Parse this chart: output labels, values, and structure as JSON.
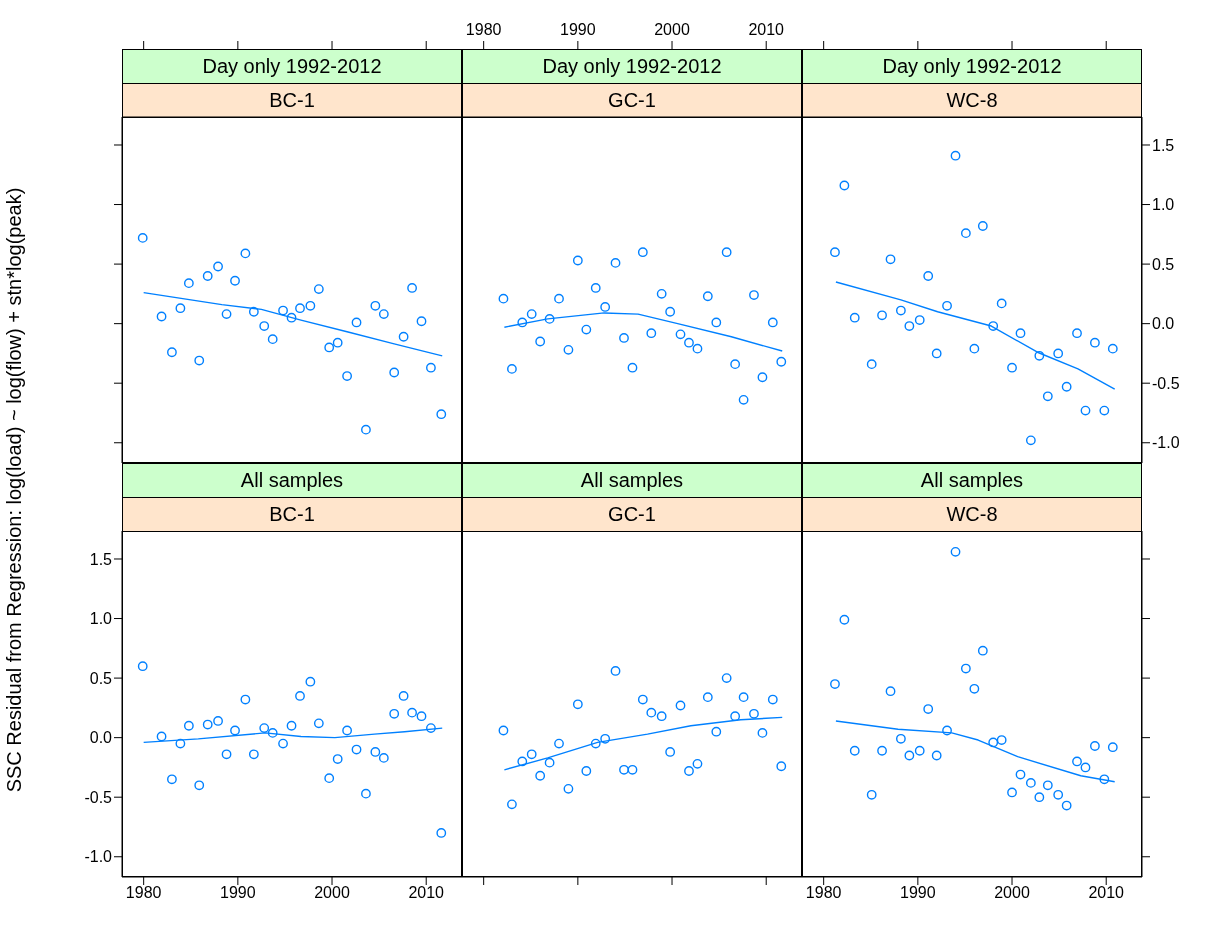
{
  "chart_data": [
    {
      "type": "scatter",
      "title": "Day only 1992-2012",
      "subtitle": "BC-1",
      "ylabel": "SSC Residual from Regression: log(load) ~ log(flow) + stn*log(peak)",
      "xlim": [
        1977.7,
        2013.8
      ],
      "xticks": [
        {
          "value": 1980,
          "label": null
        },
        {
          "value": 1990,
          "label": null
        },
        {
          "value": 2000,
          "label": null
        },
        {
          "value": 2010,
          "label": null
        }
      ],
      "ylim": [
        -1.17,
        1.735
      ],
      "yticks": [
        {
          "value": -1,
          "label": null
        },
        {
          "value": -0.5,
          "label": null
        },
        {
          "value": 0,
          "label": null
        },
        {
          "value": 0.5,
          "label": null
        },
        {
          "value": 1,
          "label": null
        },
        {
          "value": 1.5,
          "label": null
        }
      ],
      "tick_labels": false,
      "series": [
        {
          "type": "scatter",
          "marker": "circle",
          "color": "#0080ff",
          "x": [
            1979.9,
            1981.9,
            1983.0,
            1983.9,
            1984.8,
            1985.9,
            1986.8,
            1987.9,
            1988.8,
            1989.7,
            1990.8,
            1991.7,
            1992.8,
            1993.7,
            1994.8,
            1995.7,
            1996.6,
            1997.7,
            1998.6,
            1999.7,
            2000.6,
            2001.6,
            2002.6,
            2003.6,
            2004.6,
            2005.5,
            2006.6,
            2007.6,
            2008.5,
            2009.5,
            2010.5,
            2011.6
          ],
          "values": [
            0.72,
            0.06,
            -0.24,
            0.13,
            0.34,
            -0.31,
            0.4,
            0.48,
            0.08,
            0.36,
            0.59,
            0.1,
            -0.02,
            -0.13,
            0.11,
            0.05,
            0.13,
            0.15,
            0.29,
            -0.2,
            -0.16,
            -0.44,
            0.01,
            -0.89,
            0.15,
            0.08,
            -0.41,
            -0.11,
            0.3,
            0.02,
            -0.37,
            -0.76
          ]
        },
        {
          "type": "line",
          "marker": "none",
          "color": "#0080ff",
          "x": [
            1980.0,
            1988.3,
            1992.5,
            1996.7,
            2001.7,
            2006.6,
            2011.7
          ],
          "values": [
            0.26,
            0.16,
            0.12,
            0.03,
            -0.07,
            -0.17,
            -0.27
          ]
        }
      ]
    },
    {
      "type": "scatter",
      "title": "Day only 1992-2012",
      "subtitle": "GC-1",
      "xlim": [
        1977.7,
        2013.8
      ],
      "xticks": [
        1980,
        1990,
        2000,
        2010
      ],
      "ylim": [
        -1.17,
        1.735
      ],
      "yticks": [
        {
          "value": -1,
          "label": null
        },
        {
          "value": -0.5,
          "label": null
        },
        {
          "value": 0,
          "label": null
        },
        {
          "value": 0.5,
          "label": null
        },
        {
          "value": 1,
          "label": null
        },
        {
          "value": 1.5,
          "label": null
        }
      ],
      "tick_labels": "x",
      "series": [
        {
          "type": "scatter",
          "marker": "circle",
          "color": "#0080ff",
          "x": [
            1982.1,
            1983.0,
            1984.1,
            1985.1,
            1986.0,
            1987.0,
            1988.0,
            1989.0,
            1990.0,
            1990.9,
            1991.9,
            1992.9,
            1994.0,
            1994.9,
            1995.8,
            1996.9,
            1997.8,
            1998.9,
            1999.8,
            2000.9,
            2001.8,
            2002.7,
            2003.8,
            2004.7,
            2005.8,
            2006.7,
            2007.6,
            2008.7,
            2009.6,
            2010.7,
            2011.6
          ],
          "values": [
            0.21,
            -0.38,
            0.01,
            0.08,
            -0.15,
            0.04,
            0.21,
            -0.22,
            0.53,
            -0.05,
            0.3,
            0.14,
            0.51,
            -0.12,
            -0.37,
            0.6,
            -0.08,
            0.25,
            0.1,
            -0.09,
            -0.16,
            -0.21,
            0.23,
            0.01,
            0.6,
            -0.34,
            -0.64,
            0.24,
            -0.45,
            0.01,
            -0.32
          ]
        },
        {
          "type": "line",
          "marker": "none",
          "color": "#0080ff",
          "x": [
            1982.2,
            1986.8,
            1992.8,
            1996.4,
            2000.6,
            2006.3,
            2011.7
          ],
          "values": [
            -0.03,
            0.04,
            0.09,
            0.08,
            0.0,
            -0.11,
            -0.23
          ]
        }
      ]
    },
    {
      "type": "scatter",
      "title": "Day only 1992-2012",
      "subtitle": "WC-8",
      "xlim": [
        1977.7,
        2013.8
      ],
      "xticks": [
        {
          "value": 1980,
          "label": null
        },
        {
          "value": 1990,
          "label": null
        },
        {
          "value": 2000,
          "label": null
        },
        {
          "value": 2010,
          "label": null
        }
      ],
      "ylim": [
        -1.17,
        1.735
      ],
      "yticks": [
        {
          "value": -1,
          "label": "-1.0"
        },
        {
          "value": -0.5,
          "label": "-0.5"
        },
        {
          "value": 0,
          "label": "0.0"
        },
        {
          "value": 0.5,
          "label": "0.5"
        },
        {
          "value": 1,
          "label": "1.0"
        },
        {
          "value": 1.5,
          "label": "1.5"
        }
      ],
      "tick_labels": "y",
      "series": [
        {
          "type": "scatter",
          "marker": "circle",
          "color": "#0080ff",
          "x": [
            1981.2,
            1982.2,
            1983.3,
            1985.1,
            1986.2,
            1987.1,
            1988.2,
            1989.1,
            1990.2,
            1991.1,
            1992.0,
            1993.1,
            1994.0,
            1995.1,
            1996.0,
            1996.9,
            1998.0,
            1998.9,
            2000.0,
            2000.9,
            2002.0,
            2002.9,
            2003.8,
            2004.9,
            2005.8,
            2006.9,
            2007.8,
            2008.8,
            2009.8,
            2010.7
          ],
          "values": [
            0.6,
            1.16,
            0.05,
            -0.34,
            0.07,
            0.54,
            0.11,
            -0.02,
            0.03,
            0.4,
            -0.25,
            0.15,
            1.41,
            0.76,
            -0.21,
            0.82,
            -0.02,
            0.17,
            -0.37,
            -0.08,
            -0.98,
            -0.27,
            -0.61,
            -0.25,
            -0.53,
            -0.08,
            -0.73,
            -0.16,
            -0.73,
            -0.21
          ]
        },
        {
          "type": "line",
          "marker": "none",
          "color": "#0080ff",
          "x": [
            1981.3,
            1988.2,
            1992.1,
            1997.8,
            2002.7,
            2007.0,
            2010.9
          ],
          "values": [
            0.35,
            0.2,
            0.1,
            -0.02,
            -0.24,
            -0.38,
            -0.55
          ]
        }
      ]
    },
    {
      "type": "scatter",
      "title": "All samples",
      "subtitle": "BC-1",
      "xlim": [
        1977.7,
        2013.8
      ],
      "xticks": [
        1980,
        1990,
        2000,
        2010
      ],
      "ylim": [
        -1.17,
        1.735
      ],
      "yticks": [
        {
          "value": -1,
          "label": "-1.0"
        },
        {
          "value": -0.5,
          "label": "-0.5"
        },
        {
          "value": 0,
          "label": "0.0"
        },
        {
          "value": 0.5,
          "label": "0.5"
        },
        {
          "value": 1,
          "label": "1.0"
        },
        {
          "value": 1.5,
          "label": "1.5"
        }
      ],
      "series": [
        {
          "type": "scatter",
          "marker": "circle",
          "color": "#0080ff",
          "x": [
            1979.9,
            1981.9,
            1983.0,
            1983.9,
            1984.8,
            1985.9,
            1986.8,
            1987.9,
            1988.8,
            1989.7,
            1990.8,
            1991.7,
            1992.8,
            1993.7,
            1994.8,
            1995.7,
            1996.6,
            1997.7,
            1998.6,
            1999.7,
            2000.6,
            2001.6,
            2002.6,
            2003.6,
            2004.6,
            2005.5,
            2006.6,
            2007.6,
            2008.5,
            2009.5,
            2010.5,
            2011.6
          ],
          "values": [
            0.6,
            0.01,
            -0.35,
            -0.05,
            0.1,
            -0.4,
            0.11,
            0.14,
            -0.14,
            0.06,
            0.32,
            -0.14,
            0.08,
            0.04,
            -0.05,
            0.1,
            0.35,
            0.47,
            0.12,
            -0.34,
            -0.18,
            0.06,
            -0.1,
            -0.47,
            -0.12,
            -0.17,
            0.2,
            0.35,
            0.21,
            0.18,
            0.08,
            -0.8
          ]
        },
        {
          "type": "line",
          "marker": "none",
          "color": "#0080ff",
          "x": [
            1980.0,
            1985.8,
            1992.9,
            1996.7,
            2000.3,
            2004.5,
            2007.7,
            2011.7
          ],
          "values": [
            -0.04,
            -0.01,
            0.04,
            0.01,
            0.0,
            0.03,
            0.05,
            0.08
          ]
        }
      ]
    },
    {
      "type": "scatter",
      "title": "All samples",
      "subtitle": "GC-1",
      "xlim": [
        1977.7,
        2013.8
      ],
      "xticks": [
        {
          "value": 1980,
          "label": null
        },
        {
          "value": 1990,
          "label": null
        },
        {
          "value": 2000,
          "label": null
        },
        {
          "value": 2010,
          "label": null
        }
      ],
      "ylim": [
        -1.17,
        1.735
      ],
      "yticks": [
        {
          "value": -1,
          "label": null
        },
        {
          "value": -0.5,
          "label": null
        },
        {
          "value": 0,
          "label": null
        },
        {
          "value": 0.5,
          "label": null
        },
        {
          "value": 1,
          "label": null
        },
        {
          "value": 1.5,
          "label": null
        }
      ],
      "tick_labels": false,
      "series": [
        {
          "type": "scatter",
          "marker": "circle",
          "color": "#0080ff",
          "x": [
            1982.1,
            1983.0,
            1984.1,
            1985.1,
            1986.0,
            1987.0,
            1988.0,
            1989.0,
            1990.0,
            1990.9,
            1991.9,
            1992.9,
            1994.0,
            1994.9,
            1995.8,
            1996.9,
            1997.8,
            1998.9,
            1999.8,
            2000.9,
            2001.8,
            2002.7,
            2003.8,
            2004.7,
            2005.8,
            2006.7,
            2007.6,
            2008.7,
            2009.6,
            2010.7,
            2011.6
          ],
          "values": [
            0.06,
            -0.56,
            -0.2,
            -0.14,
            -0.32,
            -0.21,
            -0.05,
            -0.43,
            0.28,
            -0.28,
            -0.05,
            -0.01,
            0.56,
            -0.27,
            -0.27,
            0.32,
            0.21,
            0.18,
            -0.12,
            0.27,
            -0.28,
            -0.22,
            0.34,
            0.05,
            0.5,
            0.18,
            0.34,
            0.2,
            0.04,
            0.32,
            -0.24
          ]
        },
        {
          "type": "line",
          "marker": "none",
          "color": "#0080ff",
          "x": [
            1982.2,
            1986.8,
            1992.1,
            1997.4,
            2002.0,
            2007.3,
            2011.7
          ],
          "values": [
            -0.27,
            -0.17,
            -0.04,
            0.03,
            0.1,
            0.15,
            0.17
          ]
        }
      ]
    },
    {
      "type": "scatter",
      "title": "All samples",
      "subtitle": "WC-8",
      "xlim": [
        1977.7,
        2013.8
      ],
      "xticks": [
        1980,
        1990,
        2000,
        2010
      ],
      "ylim": [
        -1.17,
        1.735
      ],
      "yticks": [
        {
          "value": -1,
          "label": null
        },
        {
          "value": -0.5,
          "label": null
        },
        {
          "value": 0,
          "label": null
        },
        {
          "value": 0.5,
          "label": null
        },
        {
          "value": 1,
          "label": null
        },
        {
          "value": 1.5,
          "label": null
        }
      ],
      "tick_labels": "x",
      "series": [
        {
          "type": "scatter",
          "marker": "circle",
          "color": "#0080ff",
          "x": [
            1981.2,
            1982.2,
            1983.3,
            1985.1,
            1986.2,
            1987.1,
            1988.2,
            1989.1,
            1990.2,
            1991.1,
            1992.0,
            1993.1,
            1994.0,
            1995.1,
            1996.0,
            1996.9,
            1998.0,
            1998.9,
            2000.0,
            2000.9,
            2002.0,
            2002.9,
            2003.8,
            2004.9,
            2005.8,
            2006.9,
            2007.8,
            2008.8,
            2009.8,
            2010.7
          ],
          "values": [
            0.45,
            0.99,
            -0.11,
            -0.48,
            -0.11,
            0.39,
            -0.01,
            -0.15,
            -0.11,
            0.24,
            -0.15,
            0.06,
            1.56,
            0.58,
            0.41,
            0.73,
            -0.04,
            -0.02,
            -0.46,
            -0.31,
            -0.38,
            -0.5,
            -0.4,
            -0.48,
            -0.57,
            -0.2,
            -0.25,
            -0.07,
            -0.35,
            -0.08
          ]
        },
        {
          "type": "line",
          "marker": "none",
          "color": "#0080ff",
          "x": [
            1981.3,
            1987.9,
            1993.6,
            1996.4,
            2000.6,
            2007.3,
            2010.9
          ],
          "values": [
            0.14,
            0.07,
            0.04,
            -0.02,
            -0.16,
            -0.32,
            -0.37
          ]
        }
      ]
    }
  ]
}
